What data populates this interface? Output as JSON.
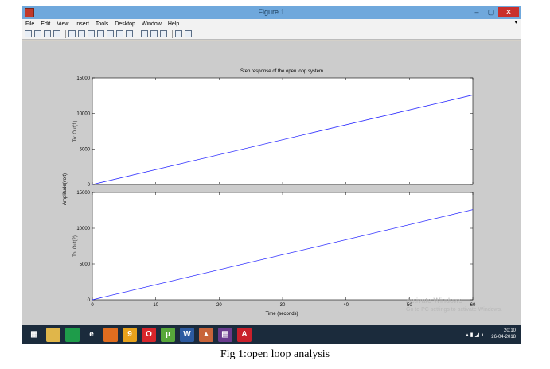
{
  "window": {
    "title": "Figure 1",
    "controls": {
      "minimize": "–",
      "maximize": "▢",
      "close": "✕"
    }
  },
  "menubar": {
    "items": [
      "File",
      "Edit",
      "View",
      "Insert",
      "Tools",
      "Desktop",
      "Window",
      "Help"
    ],
    "overflow": "▾"
  },
  "toolbar": {
    "tools": [
      "new-figure-icon",
      "open-file-icon",
      "save-icon",
      "print-icon",
      "edit-plot-icon",
      "zoom-in-icon",
      "zoom-out-icon",
      "pan-icon",
      "rotate-icon",
      "data-cursor-icon",
      "brush-icon",
      "link-icon",
      "colorbar-icon",
      "legend-icon",
      "hide-tools-icon",
      "show-tools-icon"
    ]
  },
  "chart_data": {
    "type": "line",
    "title": "Step response of the open loop system",
    "xlabel": "Time (seconds)",
    "ylabel": "Amplitude(volt)",
    "xlim": [
      0,
      60
    ],
    "x_ticks": [
      "0",
      "10",
      "20",
      "30",
      "40",
      "50",
      "60"
    ],
    "subplots": [
      {
        "ylabel": "To: Out(1)",
        "ylim": [
          0,
          15000
        ],
        "y_ticks": [
          "0",
          "5000",
          "10000",
          "15000"
        ],
        "series": [
          {
            "x": [
              0,
              60
            ],
            "y": [
              0,
              12600
            ]
          }
        ]
      },
      {
        "ylabel": "To: Out(2)",
        "ylim": [
          0,
          15000
        ],
        "y_ticks": [
          "0",
          "5000",
          "10000",
          "15000"
        ],
        "series": [
          {
            "x": [
              0,
              60
            ],
            "y": [
              0,
              12600
            ]
          }
        ]
      }
    ],
    "line_color": "#2b2bff",
    "grid": false
  },
  "watermark": {
    "line1": "Activate Windows",
    "line2": "Go to PC settings to activate Windows."
  },
  "taskbar": {
    "icons": [
      {
        "name": "windows-start-icon",
        "color": "#1b2b3c",
        "glyph": "▦"
      },
      {
        "name": "file-explorer-icon",
        "color": "#e0b64a",
        "glyph": ""
      },
      {
        "name": "store-icon",
        "color": "#1e9c4a",
        "glyph": ""
      },
      {
        "name": "internet-explorer-icon",
        "color": "#1b2b3c",
        "glyph": "e"
      },
      {
        "name": "firefox-icon",
        "color": "#e06d1f",
        "glyph": ""
      },
      {
        "name": "number9-icon",
        "color": "#e8a21c",
        "glyph": "9"
      },
      {
        "name": "opera-icon",
        "color": "#d7262b",
        "glyph": "O"
      },
      {
        "name": "utorrent-icon",
        "color": "#58a83a",
        "glyph": "µ"
      },
      {
        "name": "word-icon",
        "color": "#2c5aa0",
        "glyph": "W"
      },
      {
        "name": "matlab-icon",
        "color": "#c8643a",
        "glyph": "▲"
      },
      {
        "name": "winrar-icon",
        "color": "#6a3b8e",
        "glyph": "▤"
      },
      {
        "name": "acrobat-icon",
        "color": "#c9202b",
        "glyph": "A"
      }
    ],
    "clock_time": "20:10",
    "clock_date": "26-04-2018"
  },
  "caption": "Fig 1:open loop analysis"
}
